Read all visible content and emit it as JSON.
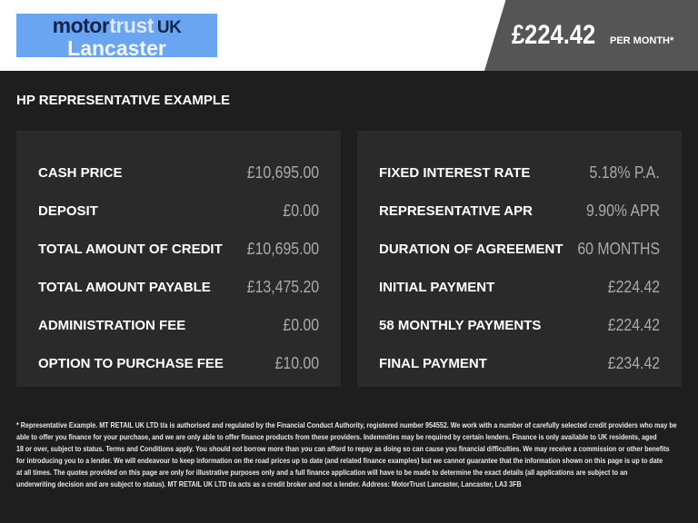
{
  "header": {
    "logo": {
      "word1": "motor",
      "word2": "trust",
      "word3": "UK",
      "line2": "Lancaster",
      "color": "#6aa5f2"
    },
    "price": "£224.42",
    "per_month": "PER MONTH*"
  },
  "title": "HP REPRESENTATIVE EXAMPLE",
  "left": [
    {
      "label": "CASH PRICE",
      "value": "£10,695.00"
    },
    {
      "label": "DEPOSIT",
      "value": "£0.00"
    },
    {
      "label": "TOTAL AMOUNT OF CREDIT",
      "value": "£10,695.00"
    },
    {
      "label": "TOTAL AMOUNT PAYABLE",
      "value": "£13,475.20"
    },
    {
      "label": "ADMINISTRATION FEE",
      "value": "£0.00"
    },
    {
      "label": "OPTION TO PURCHASE FEE",
      "value": "£10.00"
    }
  ],
  "right": [
    {
      "label": "FIXED INTEREST RATE",
      "value": "5.18% P.A."
    },
    {
      "label": "REPRESENTATIVE APR",
      "value": "9.90% APR"
    },
    {
      "label": "DURATION OF AGREEMENT",
      "value": "60 MONTHS"
    },
    {
      "label": "INITIAL PAYMENT",
      "value": "£224.42"
    },
    {
      "label": "58 MONTHLY PAYMENTS",
      "value": "£224.42"
    },
    {
      "label": "FINAL PAYMENT",
      "value": "£234.42"
    }
  ],
  "footer": [
    "* Representative Example. MT RETAIL UK LTD t/a is authorised and regulated by the Financial Conduct Authority, registered number 954552. We work with a number of carefully selected credit providers who may be",
    "able to offer you finance for your purchase, and we are only able to offer finance products from these providers. Indemnities may be required by certain lenders. Finance is only available to UK residents, aged",
    "18 or over, subject to status. Terms and Conditions apply. You should not borrow more than you can afford to repay as doing so can cause you financial difficulties. We may receive a commission or other benefits",
    "for introducing you to a lender. We will endeavour to keep information on the road prices up to date (and related finance examples) but we cannot guarantee that the information shown on this page is up to date",
    "at all times. The quotes provided on this page are only for illustrative purposes only and a full finance application will have to be made to determine the exact details (all applications are subject to an",
    "underwriting decision and are subject to status). MT RETAIL UK LTD t/a acts as a credit broker and not a lender. Address: MotorTrust Lancaster, Lancaster, LA3 3FB"
  ]
}
